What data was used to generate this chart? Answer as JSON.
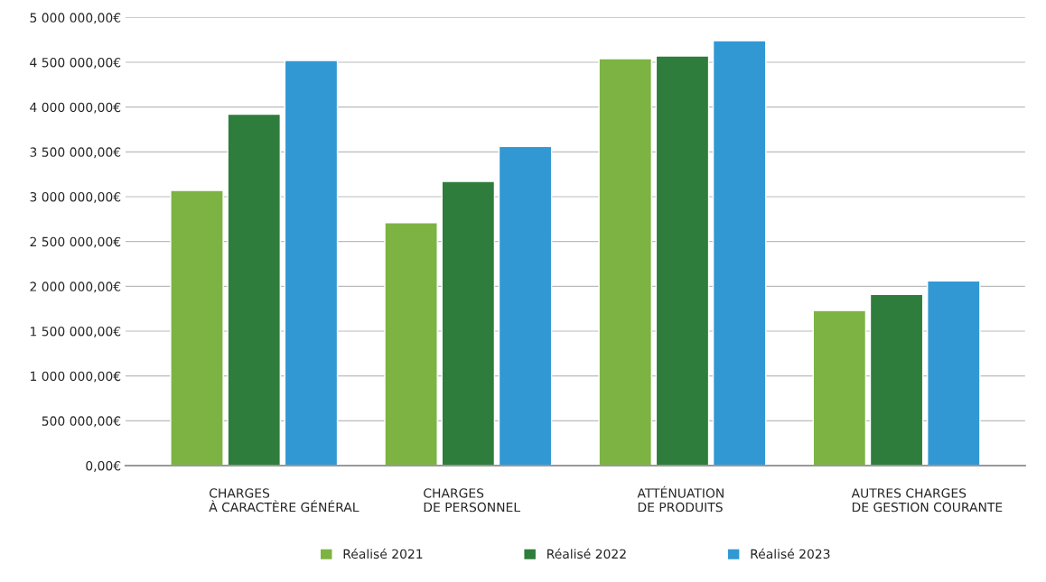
{
  "chart_data": {
    "type": "bar",
    "categories": [
      "CHARGES\nÀ CARACTÈRE GÉNÉRAL",
      "CHARGES\nDE PERSONNEL",
      "ATTÉNUATION\nDE PRODUITS",
      "AUTRES CHARGES\nDE GESTION COURANTE"
    ],
    "series": [
      {
        "name": "Réalisé 2021",
        "color": "#7cb342",
        "values": [
          3070000,
          2710000,
          4540000,
          1730000
        ]
      },
      {
        "name": "Réalisé 2022",
        "color": "#2e7d3c",
        "values": [
          3920000,
          3170000,
          4570000,
          1910000
        ]
      },
      {
        "name": "Réalisé 2023",
        "color": "#3198d4",
        "values": [
          4520000,
          3560000,
          4740000,
          2060000
        ]
      }
    ],
    "ylim": [
      0,
      5000000
    ],
    "yticks": [
      {
        "value": 0,
        "label": "0,00€"
      },
      {
        "value": 500000,
        "label": "500 000,00€"
      },
      {
        "value": 1000000,
        "label": "1 000 000,00€"
      },
      {
        "value": 1500000,
        "label": "1 500 000,00€"
      },
      {
        "value": 2000000,
        "label": "2 000 000,00€"
      },
      {
        "value": 2500000,
        "label": "2 500 000,00€"
      },
      {
        "value": 3000000,
        "label": "3 000 000,00€"
      },
      {
        "value": 3500000,
        "label": "3 500 000,00€"
      },
      {
        "value": 4000000,
        "label": "4 000 000,00€"
      },
      {
        "value": 4500000,
        "label": "4 500 000,00€"
      },
      {
        "value": 5000000,
        "label": "5 000 000,00€"
      }
    ],
    "grid": "y",
    "legend": "bottom"
  }
}
